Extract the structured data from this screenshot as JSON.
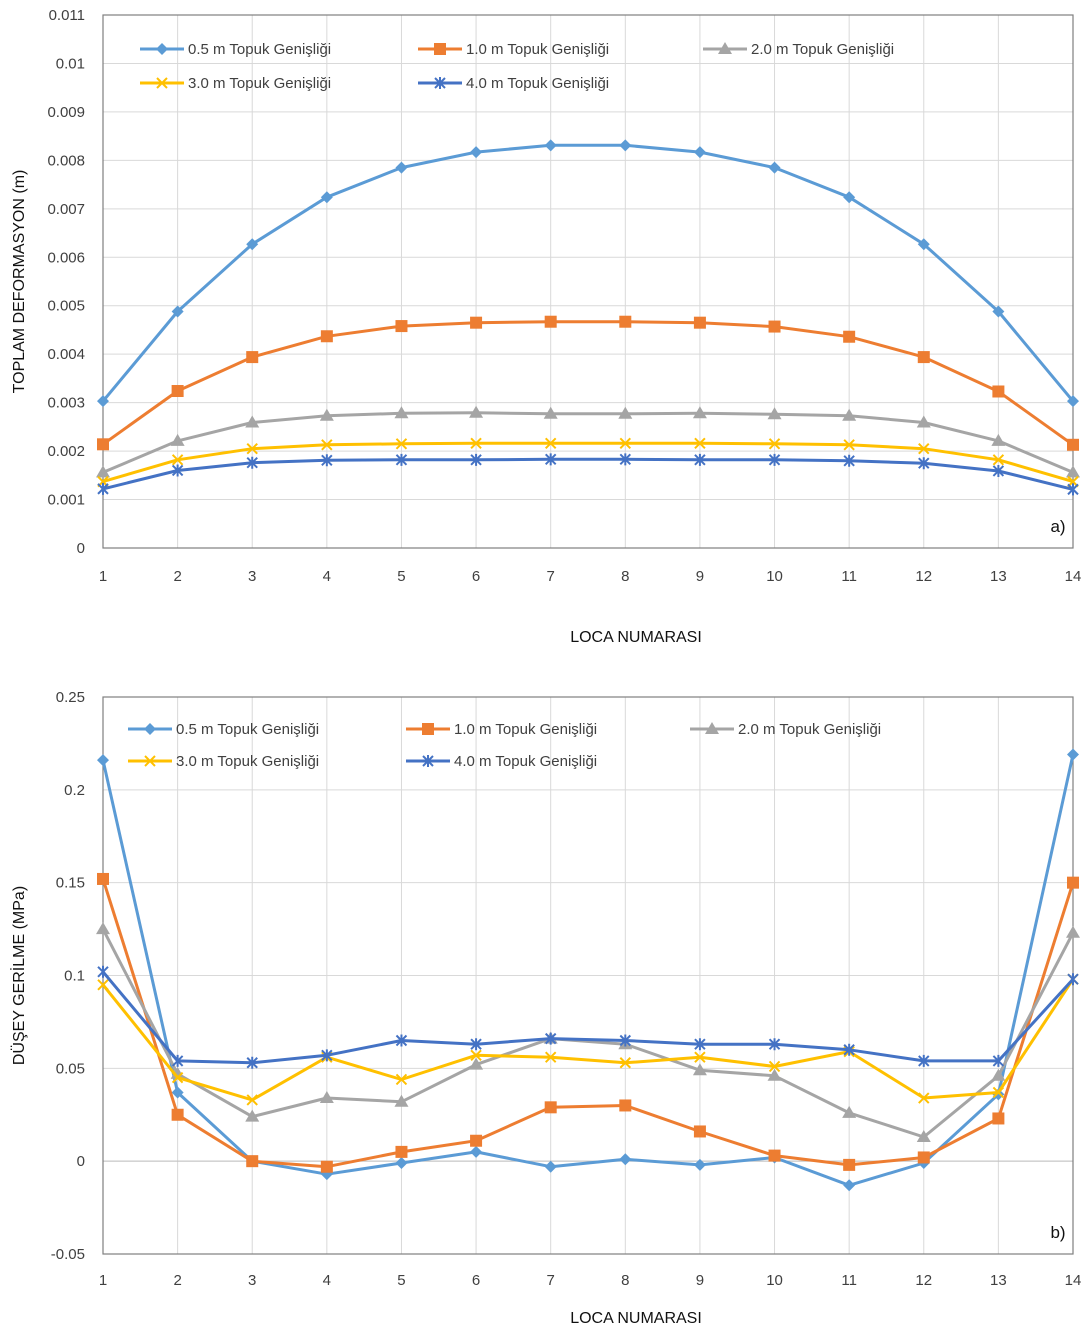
{
  "chart_data": [
    {
      "type": "line",
      "panel_label": "a)",
      "xlabel": "LOCA NUMARASI",
      "ylabel": "TOPLAM DEFORMASYON (m)",
      "x": [
        1,
        2,
        3,
        4,
        5,
        6,
        7,
        8,
        9,
        10,
        11,
        12,
        13,
        14
      ],
      "ylim": [
        0,
        0.011
      ],
      "yticks": [
        0,
        0.001,
        0.002,
        0.003,
        0.004,
        0.005,
        0.006,
        0.007,
        0.008,
        0.009,
        0.01,
        0.011
      ],
      "ytick_labels": [
        "0",
        "0.001",
        "0.002",
        "0.003",
        "0.004",
        "0.005",
        "0.006",
        "0.007",
        "0.008",
        "0.009",
        "0.01",
        "0.011"
      ],
      "grid": true,
      "legend_position": "top",
      "series": [
        {
          "name": "0.5 m Topuk Genişliği",
          "color": "#5B9BD5",
          "marker": "diamond",
          "values": [
            0.00303,
            0.00488,
            0.00627,
            0.00724,
            0.00785,
            0.00817,
            0.00831,
            0.00831,
            0.00817,
            0.00785,
            0.00724,
            0.00627,
            0.00488,
            0.00303
          ]
        },
        {
          "name": "1.0 m Topuk Genişliği",
          "color": "#ED7D31",
          "marker": "square",
          "values": [
            0.00214,
            0.00324,
            0.00394,
            0.00437,
            0.00458,
            0.00465,
            0.00467,
            0.00467,
            0.00465,
            0.00457,
            0.00436,
            0.00394,
            0.00323,
            0.00213
          ]
        },
        {
          "name": "2.0 m Topuk Genişliği",
          "color": "#A5A5A5",
          "marker": "triangle",
          "values": [
            0.00156,
            0.00221,
            0.00259,
            0.00273,
            0.00278,
            0.00279,
            0.00277,
            0.00277,
            0.00278,
            0.00276,
            0.00273,
            0.00259,
            0.00221,
            0.00156
          ]
        },
        {
          "name": "3.0 m Topuk Genişliği",
          "color": "#FFC000",
          "marker": "x",
          "values": [
            0.00137,
            0.00182,
            0.00205,
            0.00213,
            0.00215,
            0.00216,
            0.00216,
            0.00216,
            0.00216,
            0.00215,
            0.00213,
            0.00205,
            0.00182,
            0.00137
          ]
        },
        {
          "name": "4.0 m Topuk Genişliği",
          "color": "#4472C4",
          "marker": "star",
          "values": [
            0.00122,
            0.0016,
            0.00176,
            0.00181,
            0.00182,
            0.00182,
            0.00183,
            0.00183,
            0.00182,
            0.00182,
            0.0018,
            0.00175,
            0.00159,
            0.00121
          ]
        }
      ]
    },
    {
      "type": "line",
      "panel_label": "b)",
      "xlabel": "LOCA NUMARASI",
      "ylabel": "DÜŞEY GERİLME (MPa)",
      "x": [
        1,
        2,
        3,
        4,
        5,
        6,
        7,
        8,
        9,
        10,
        11,
        12,
        13,
        14
      ],
      "ylim": [
        -0.05,
        0.25
      ],
      "yticks": [
        -0.05,
        0,
        0.05,
        0.1,
        0.15,
        0.2,
        0.25
      ],
      "ytick_labels": [
        "-0.05",
        "0",
        "0.05",
        "0.1",
        "0.15",
        "0.2",
        "0.25"
      ],
      "grid": true,
      "legend_position": "top",
      "series": [
        {
          "name": "0.5 m Topuk Genişliği",
          "color": "#5B9BD5",
          "marker": "diamond",
          "values": [
            0.216,
            0.037,
            0.0,
            -0.007,
            -0.001,
            0.005,
            -0.003,
            0.001,
            -0.002,
            0.002,
            -0.013,
            -0.001,
            0.036,
            0.219
          ]
        },
        {
          "name": "1.0 m Topuk Genişliği",
          "color": "#ED7D31",
          "marker": "square",
          "values": [
            0.152,
            0.025,
            0.0,
            -0.003,
            0.005,
            0.011,
            0.029,
            0.03,
            0.016,
            0.003,
            -0.002,
            0.002,
            0.023,
            0.15
          ]
        },
        {
          "name": "2.0 m Topuk Genişliği",
          "color": "#A5A5A5",
          "marker": "triangle",
          "values": [
            0.125,
            0.047,
            0.024,
            0.034,
            0.032,
            0.052,
            0.066,
            0.063,
            0.049,
            0.046,
            0.026,
            0.013,
            0.046,
            0.123
          ]
        },
        {
          "name": "3.0 m Topuk Genişliği",
          "color": "#FFC000",
          "marker": "x",
          "values": [
            0.095,
            0.045,
            0.033,
            0.056,
            0.044,
            0.057,
            0.056,
            0.053,
            0.056,
            0.051,
            0.059,
            0.034,
            0.037,
            0.098
          ]
        },
        {
          "name": "4.0 m Topuk Genişliği",
          "color": "#4472C4",
          "marker": "star",
          "values": [
            0.102,
            0.054,
            0.053,
            0.057,
            0.065,
            0.063,
            0.066,
            0.065,
            0.063,
            0.063,
            0.06,
            0.054,
            0.054,
            0.098
          ]
        }
      ]
    }
  ]
}
